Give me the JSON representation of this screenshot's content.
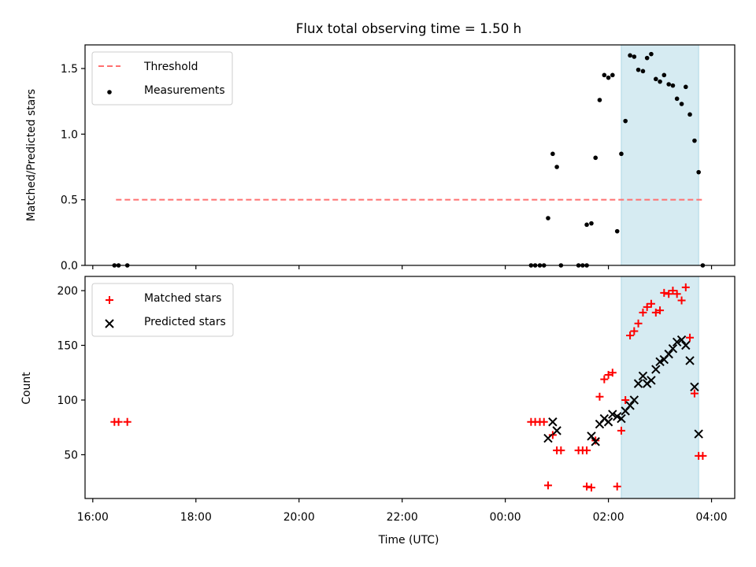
{
  "chart_data": {
    "title": "Flux total observing time = 1.50 h",
    "xlabel": "Time (UTC)",
    "x_unit": "hours since 16:00 UTC",
    "xlim": [
      -0.15,
      12.45
    ],
    "x_ticks": [
      0,
      2,
      4,
      6,
      8,
      10,
      12
    ],
    "x_tick_labels": [
      "16:00",
      "18:00",
      "20:00",
      "22:00",
      "00:00",
      "02:00",
      "04:00"
    ],
    "highlight_span": [
      10.25,
      11.75
    ],
    "panels": [
      {
        "name": "ratio",
        "type": "scatter",
        "ylabel": "Matched/Predicted stars",
        "ylim": [
          0,
          1.68
        ],
        "y_ticks": [
          0.0,
          0.5,
          1.0,
          1.5
        ],
        "y_tick_labels": [
          "0.0",
          "0.5",
          "1.0",
          "1.5"
        ],
        "legend": {
          "position": "upper-left",
          "entries": [
            "Threshold",
            "Measurements"
          ]
        },
        "threshold": {
          "name": "Threshold",
          "y": 0.5,
          "x_range": [
            0.45,
            11.85
          ],
          "color": "#ff7070"
        },
        "series": [
          {
            "name": "Measurements",
            "color": "#000000",
            "marker": "dot",
            "points": [
              [
                0.42,
                0.0
              ],
              [
                0.5,
                0.0
              ],
              [
                0.67,
                0.0
              ],
              [
                8.5,
                0.0
              ],
              [
                8.58,
                0.0
              ],
              [
                8.67,
                0.0
              ],
              [
                8.75,
                0.0
              ],
              [
                8.83,
                0.36
              ],
              [
                8.92,
                0.85
              ],
              [
                9.0,
                0.75
              ],
              [
                9.08,
                0.0
              ],
              [
                9.42,
                0.0
              ],
              [
                9.5,
                0.0
              ],
              [
                9.58,
                0.0
              ],
              [
                9.58,
                0.31
              ],
              [
                9.67,
                0.32
              ],
              [
                9.75,
                0.82
              ],
              [
                9.83,
                1.26
              ],
              [
                9.92,
                1.45
              ],
              [
                10.0,
                1.43
              ],
              [
                10.08,
                1.45
              ],
              [
                10.17,
                0.26
              ],
              [
                10.25,
                0.85
              ],
              [
                10.33,
                1.1
              ],
              [
                10.42,
                1.6
              ],
              [
                10.5,
                1.59
              ],
              [
                10.58,
                1.49
              ],
              [
                10.67,
                1.48
              ],
              [
                10.75,
                1.58
              ],
              [
                10.83,
                1.61
              ],
              [
                10.92,
                1.42
              ],
              [
                11.0,
                1.4
              ],
              [
                11.08,
                1.45
              ],
              [
                11.17,
                1.38
              ],
              [
                11.25,
                1.37
              ],
              [
                11.33,
                1.27
              ],
              [
                11.42,
                1.23
              ],
              [
                11.5,
                1.36
              ],
              [
                11.58,
                1.15
              ],
              [
                11.67,
                0.95
              ],
              [
                11.75,
                0.71
              ],
              [
                11.83,
                0.0
              ]
            ]
          }
        ]
      },
      {
        "name": "counts",
        "type": "scatter",
        "ylabel": "Count",
        "ylim": [
          10,
          213
        ],
        "y_ticks": [
          50,
          100,
          150,
          200
        ],
        "y_tick_labels": [
          "50",
          "100",
          "150",
          "200"
        ],
        "legend": {
          "position": "upper-left",
          "entries": [
            "Matched stars",
            "Predicted stars"
          ]
        },
        "series": [
          {
            "name": "Matched stars",
            "color": "#ff0000",
            "marker": "plus",
            "points": [
              [
                0.42,
                80
              ],
              [
                0.5,
                80
              ],
              [
                0.67,
                80
              ],
              [
                8.5,
                80
              ],
              [
                8.58,
                80
              ],
              [
                8.67,
                80
              ],
              [
                8.75,
                80
              ],
              [
                8.83,
                22
              ],
              [
                8.92,
                68
              ],
              [
                9.0,
                54
              ],
              [
                9.08,
                54
              ],
              [
                9.42,
                54
              ],
              [
                9.5,
                54
              ],
              [
                9.58,
                54
              ],
              [
                9.58,
                21
              ],
              [
                9.67,
                20
              ],
              [
                9.75,
                63
              ],
              [
                9.83,
                103
              ],
              [
                9.92,
                119
              ],
              [
                10.0,
                123
              ],
              [
                10.08,
                125
              ],
              [
                10.17,
                21
              ],
              [
                10.25,
                72
              ],
              [
                10.33,
                100
              ],
              [
                10.42,
                159
              ],
              [
                10.5,
                163
              ],
              [
                10.58,
                170
              ],
              [
                10.67,
                180
              ],
              [
                10.75,
                185
              ],
              [
                10.83,
                188
              ],
              [
                10.92,
                180
              ],
              [
                11.0,
                182
              ],
              [
                11.08,
                198
              ],
              [
                11.17,
                197
              ],
              [
                11.25,
                200
              ],
              [
                11.33,
                197
              ],
              [
                11.42,
                191
              ],
              [
                11.5,
                203
              ],
              [
                11.58,
                157
              ],
              [
                11.67,
                106
              ],
              [
                11.75,
                49
              ],
              [
                11.83,
                49
              ]
            ]
          },
          {
            "name": "Predicted stars",
            "color": "#000000",
            "marker": "x",
            "points": [
              [
                8.83,
                65
              ],
              [
                8.92,
                80
              ],
              [
                9.0,
                72
              ],
              [
                9.67,
                67
              ],
              [
                9.75,
                62
              ],
              [
                9.83,
                78
              ],
              [
                9.92,
                83
              ],
              [
                10.0,
                80
              ],
              [
                10.08,
                87
              ],
              [
                10.17,
                85
              ],
              [
                10.25,
                83
              ],
              [
                10.33,
                90
              ],
              [
                10.42,
                95
              ],
              [
                10.5,
                100
              ],
              [
                10.58,
                115
              ],
              [
                10.67,
                122
              ],
              [
                10.75,
                115
              ],
              [
                10.83,
                118
              ],
              [
                10.92,
                128
              ],
              [
                11.0,
                135
              ],
              [
                11.08,
                137
              ],
              [
                11.17,
                142
              ],
              [
                11.25,
                147
              ],
              [
                11.33,
                153
              ],
              [
                11.42,
                155
              ],
              [
                11.5,
                150
              ],
              [
                11.58,
                136
              ],
              [
                11.67,
                112
              ],
              [
                11.75,
                69
              ]
            ]
          }
        ]
      }
    ]
  }
}
